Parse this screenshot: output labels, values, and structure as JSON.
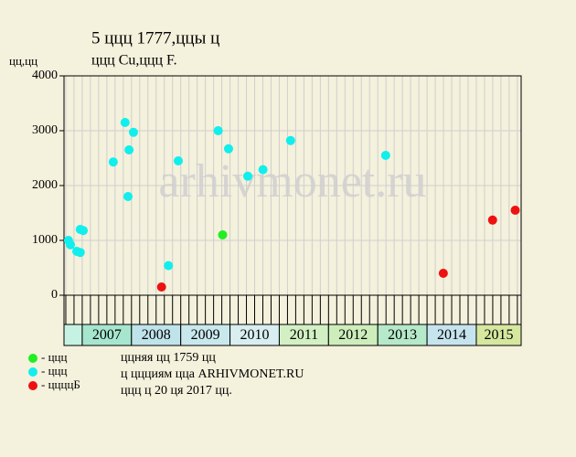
{
  "chart_data": {
    "type": "scatter",
    "title": "5 ццц 1777,ццы ц",
    "subtitle": "ццц Cu,ццц F.",
    "y_label": "цц,цц",
    "watermark": "arhivmonet.ru",
    "xlim": [
      2006.63,
      2015.91
    ],
    "ylim": [
      0,
      4000
    ],
    "yticks": [
      0,
      1000,
      2000,
      3000,
      4000
    ],
    "year_bands": {
      "starts": [
        2006,
        2007,
        2008,
        2009,
        2010,
        2011,
        2012,
        2013,
        2014,
        2015
      ],
      "labels": [
        null,
        "2007",
        "2008",
        "2009",
        "2010",
        "2011",
        "2012",
        "2013",
        "2014",
        "2015"
      ],
      "colors": [
        "#c6f2e4",
        "#a6e6cf",
        "#bfe3ea",
        "#c9e8ee",
        "#d8eef0",
        "#d2f0c4",
        "#cdeebb",
        "#b5e9c9",
        "#c6e4ee",
        "#d6e79f"
      ]
    },
    "series": [
      {
        "name": "- ццц",
        "color": "#22ee22",
        "x": [
          2009.85
        ],
        "values": [
          1100
        ]
      },
      {
        "name": "- ццц",
        "color": "#11eeee",
        "x": [
          2006.72,
          2006.76,
          2006.89,
          2006.96,
          2006.96,
          2007.02,
          2007.63,
          2007.87,
          2007.95,
          2008.04,
          2007.93,
          2008.75,
          2008.95,
          2009.76,
          2009.97,
          2010.36,
          2010.67,
          2011.23,
          2013.16
        ],
        "values": [
          1000,
          920,
          800,
          780,
          1200,
          1180,
          2430,
          3150,
          2650,
          2970,
          1800,
          540,
          2450,
          3000,
          2670,
          2170,
          2290,
          2820,
          2550
        ]
      },
      {
        "name": "- ццццБ",
        "color": "#ee1111",
        "x": [
          2008.61,
          2014.33,
          2015.33,
          2015.79
        ],
        "values": [
          150,
          400,
          1370,
          1550
        ]
      }
    ],
    "notes": [
      "ццняя цц 1759 цц",
      "ц ццциям цца ARHIVMONET.RU",
      "ццц ц 20 ця 2017 цц."
    ]
  }
}
